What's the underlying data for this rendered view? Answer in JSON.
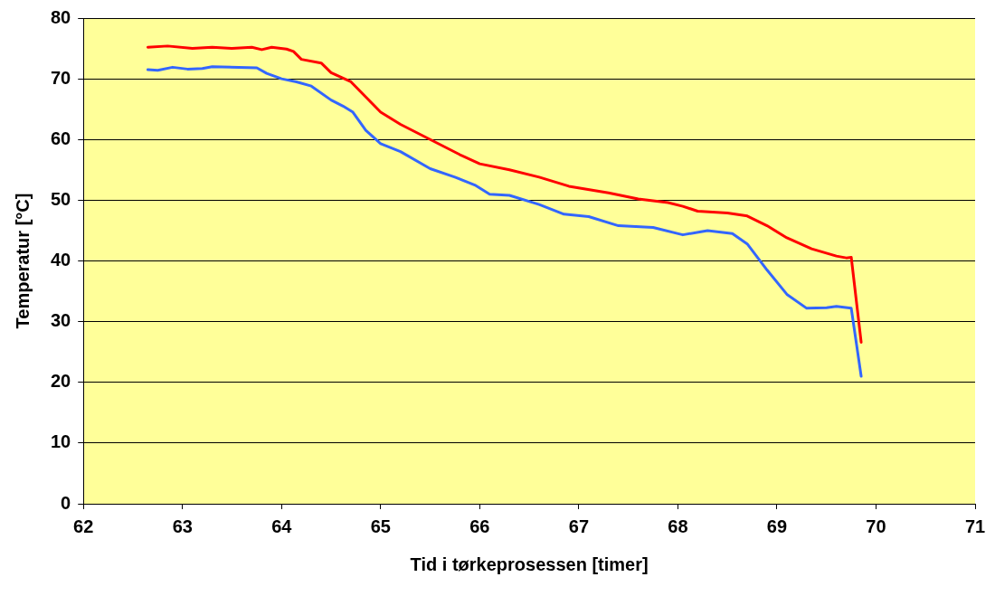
{
  "chart_data": {
    "type": "line",
    "xlabel": "Tid i tørkeprosessen [timer]",
    "ylabel": "Temperatur [°C]",
    "xlim": [
      62,
      71
    ],
    "xticks": [
      62,
      63,
      64,
      65,
      66,
      67,
      68,
      69,
      70,
      71
    ],
    "ylim": [
      0,
      80
    ],
    "yticks": [
      0,
      10,
      20,
      30,
      40,
      50,
      60,
      70,
      80
    ],
    "grid": "y",
    "legend": false,
    "marker": "none",
    "line_style": "solid",
    "series": [
      {
        "color": "#ff0000",
        "x": [
          62.65,
          62.85,
          63.1,
          63.3,
          63.5,
          63.7,
          63.8,
          63.9,
          64.05,
          64.12,
          64.2,
          64.4,
          64.5,
          64.7,
          64.85,
          65.0,
          65.2,
          65.5,
          65.8,
          66.0,
          66.3,
          66.6,
          66.9,
          67.3,
          67.6,
          67.9,
          68.05,
          68.2,
          68.5,
          68.7,
          68.9,
          69.1,
          69.35,
          69.6,
          69.7,
          69.75,
          69.85
        ],
        "values": [
          75.2,
          75.4,
          75.0,
          75.2,
          75.0,
          75.2,
          74.8,
          75.2,
          74.9,
          74.5,
          73.2,
          72.6,
          71.0,
          69.5,
          67.0,
          64.5,
          62.5,
          60.0,
          57.5,
          56.0,
          55.0,
          53.8,
          52.3,
          51.2,
          50.2,
          49.6,
          49.0,
          48.2,
          47.9,
          47.4,
          45.8,
          43.8,
          42.0,
          40.8,
          40.5,
          40.6,
          26.6
        ]
      },
      {
        "color": "#3366ff",
        "x": [
          62.65,
          62.75,
          62.9,
          63.05,
          63.2,
          63.3,
          63.75,
          63.85,
          64.0,
          64.15,
          64.3,
          64.5,
          64.62,
          64.72,
          64.85,
          65.0,
          65.2,
          65.5,
          65.75,
          65.95,
          66.1,
          66.3,
          66.6,
          66.85,
          67.1,
          67.4,
          67.75,
          68.05,
          68.3,
          68.55,
          68.7,
          68.9,
          69.1,
          69.3,
          69.5,
          69.6,
          69.75,
          69.85
        ],
        "values": [
          71.5,
          71.4,
          71.9,
          71.6,
          71.7,
          72.0,
          71.8,
          70.9,
          70.0,
          69.5,
          68.8,
          66.5,
          65.5,
          64.5,
          61.5,
          59.3,
          58.0,
          55.2,
          53.8,
          52.5,
          51.0,
          50.8,
          49.3,
          47.7,
          47.3,
          45.8,
          45.5,
          44.3,
          45.0,
          44.5,
          42.8,
          38.5,
          34.5,
          32.2,
          32.3,
          32.5,
          32.2,
          21.0
        ]
      }
    ]
  }
}
